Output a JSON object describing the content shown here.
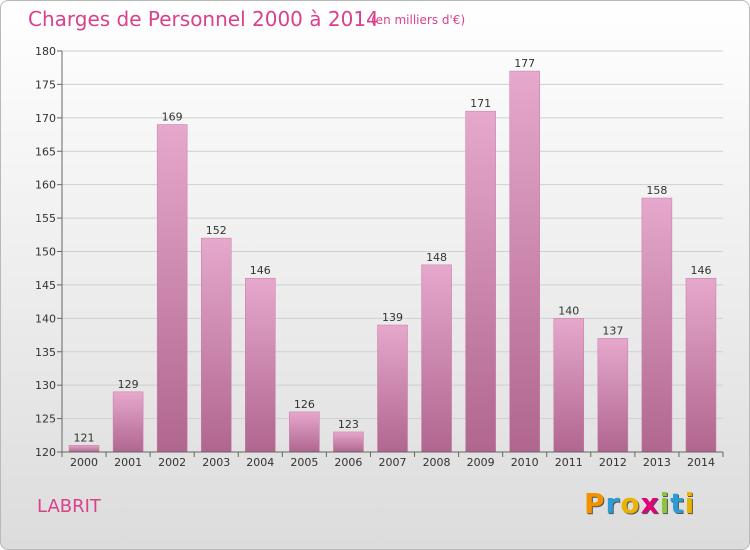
{
  "title": "Charges de Personnel 2000 à 2014",
  "subtitle": "(en milliers d'€)",
  "commune": "LABRIT",
  "logo": {
    "letters": [
      "P",
      "r",
      "o",
      "x",
      "i",
      "t",
      "i"
    ],
    "colors": [
      "#f39200",
      "#2c9bd6",
      "#e8b400",
      "#e2007a",
      "#8cc63f",
      "#2c9bd6",
      "#e8b400"
    ]
  },
  "colors": {
    "bar_top": "#e6a8cc",
    "bar_bottom": "#b0668f",
    "text_accent": "#d9418d"
  },
  "chart_data": {
    "type": "bar",
    "categories": [
      "2000",
      "2001",
      "2002",
      "2003",
      "2004",
      "2005",
      "2006",
      "2007",
      "2008",
      "2009",
      "2010",
      "2011",
      "2012",
      "2013",
      "2014"
    ],
    "values": [
      121,
      129,
      169,
      152,
      146,
      126,
      123,
      139,
      148,
      171,
      177,
      140,
      137,
      158,
      146
    ],
    "ylim": [
      120,
      180
    ],
    "yticks": [
      120,
      125,
      130,
      135,
      140,
      145,
      150,
      155,
      160,
      165,
      170,
      175,
      180
    ],
    "grid": true
  }
}
